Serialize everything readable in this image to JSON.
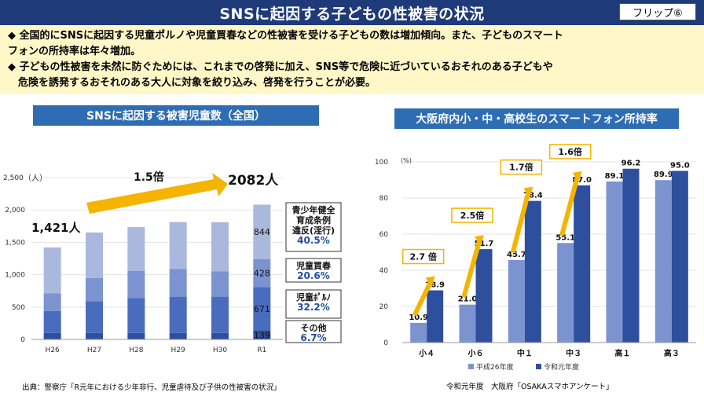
{
  "header": {
    "title": "SNSに起因する子どもの性被害の状況",
    "flip_label": "フリップ⑥"
  },
  "summary": {
    "lines": [
      "◆ 全国的にSNSに起因する児童ポルノや児童買春などの性被害を受ける子どもの数は増加傾向。また、子どものスマート",
      "フォンの所持率は年々増加。",
      "◆ 子どもの性被害を未然に防ぐためには、これまでの啓発に加え、SNS等で危険に近づいているおそれのある子どもや",
      "　危険を誘発するおそれのある大人に対象を絞り込み、啓発を行うことが必要。"
    ]
  },
  "left_chart": {
    "heading": "SNSに起因する被害児童数（全国）",
    "unit_label": "（人）",
    "first_label": "1,421人",
    "last_label": "2082人",
    "growth_label": "1.5倍",
    "boxes": [
      {
        "lines": [
          "青少年健全",
          "育成条例",
          "違反(淫行)"
        ],
        "pct": "40.5%"
      },
      {
        "lines": [
          "児童買春"
        ],
        "pct": "20.6%"
      },
      {
        "lines": [
          "児童ﾎﾟﾙﾉ"
        ],
        "pct": "32.2%"
      },
      {
        "lines": [
          "その他"
        ],
        "pct": "6.7%"
      }
    ],
    "source": "出典：警察庁「R元年における少年非行、児童虐待及び子供の性被害の状況」"
  },
  "right_chart": {
    "heading": "大阪府内小・中・高校生のスマートフォン所持率",
    "unit_label": "(%)",
    "ratios": [
      "2.7 倍",
      "2.5倍",
      "1.7倍",
      "1.6倍"
    ],
    "source": "令和元年度　大阪府「OSAKAスマホアンケート」"
  },
  "colors": {
    "navy": "#1f3a78",
    "blue": "#2e6db4",
    "light": "#aab8dd",
    "mid": "#7b93cf",
    "dark": "#4a6cbf",
    "darkest": "#2d4f9e",
    "arrow": "#f4b400",
    "boxText": "#1f4e9c"
  },
  "chart_data": [
    {
      "type": "bar",
      "stacked": true,
      "title": "SNSに起因する被害児童数（全国）",
      "ylabel": "（人）",
      "categories": [
        "H26",
        "H27",
        "H28",
        "H29",
        "H30",
        "R1"
      ],
      "ylim": [
        0,
        2500
      ],
      "yticks": [
        "0",
        "500",
        "1,000",
        "1,500",
        "2,000",
        "2,500"
      ],
      "series": [
        {
          "name": "その他",
          "values": [
            100,
            100,
            100,
            100,
            100,
            139
          ]
        },
        {
          "name": "児童ポルノ",
          "values": [
            340,
            490,
            540,
            560,
            560,
            671
          ]
        },
        {
          "name": "児童買春",
          "values": [
            270,
            360,
            420,
            430,
            390,
            428
          ]
        },
        {
          "name": "青少年健全育成条例違反(淫行)",
          "values": [
            711,
            702,
            676,
            723,
            761,
            844
          ]
        }
      ],
      "segment_labels": {
        "R1": [
          "139",
          "671",
          "428",
          "844"
        ]
      }
    },
    {
      "type": "bar",
      "title": "大阪府内小・中・高校生のスマートフォン所持率",
      "ylabel": "(%)",
      "categories": [
        "小４",
        "小６",
        "中１",
        "中３",
        "高１",
        "高３"
      ],
      "ylim": [
        0,
        100
      ],
      "yticks": [
        "0",
        "20",
        "40",
        "60",
        "80",
        "100"
      ],
      "series": [
        {
          "name": "平成26年度",
          "values": [
            10.9,
            21.0,
            45.7,
            55.1,
            89.1,
            89.9
          ],
          "labels": [
            "10.9",
            "21.0",
            "45.7",
            "55.1",
            "89.1",
            "89.9"
          ]
        },
        {
          "name": "令和元年度",
          "values": [
            28.9,
            51.7,
            78.4,
            87.0,
            96.2,
            95.0
          ],
          "labels": [
            "28.9",
            "51.7",
            "78.4",
            "87.0",
            "96.2",
            "95.0"
          ]
        }
      ]
    }
  ]
}
